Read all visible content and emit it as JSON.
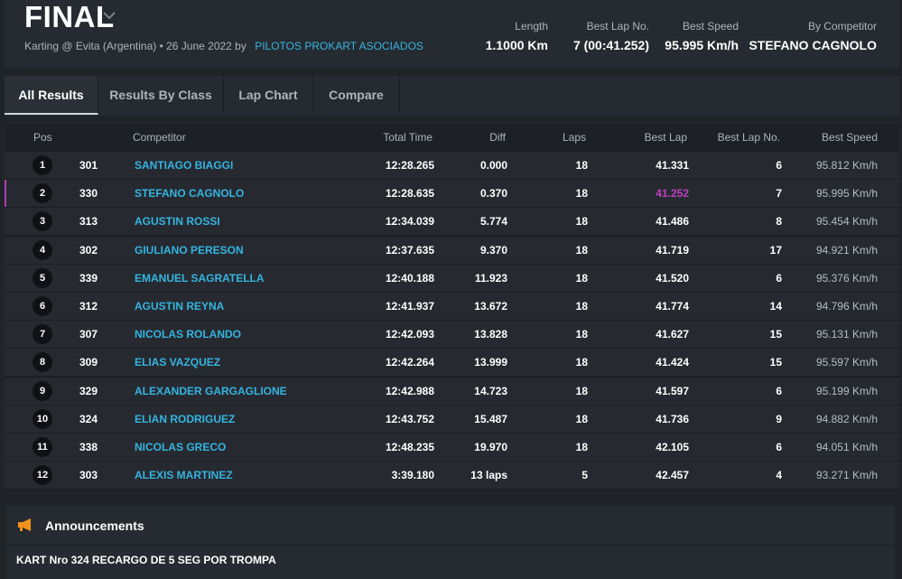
{
  "header": {
    "title": "FINAL",
    "subtitle": "Karting @ Evita (Argentina) • 26 June 2022 by",
    "organizer": "PILOTOS PROKART ASOCIADOS",
    "stats": [
      {
        "label": "Length",
        "value": "1.1000 Km"
      },
      {
        "label": "Best Lap No.",
        "value": "7 (00:41.252)"
      },
      {
        "label": "Best Speed",
        "value": "95.995 Km/h"
      },
      {
        "label": "By Competitor",
        "value": "STEFANO CAGNOLO"
      }
    ]
  },
  "tabs": [
    "All Results",
    "Results By Class",
    "Lap Chart",
    "Compare"
  ],
  "active_tab": "All Results",
  "table": {
    "columns": [
      "Pos",
      "Competitor",
      "Total Time",
      "Diff",
      "Laps",
      "Best Lap",
      "Best Lap No.",
      "Best Speed"
    ],
    "rows": [
      {
        "pos": "1",
        "num": "301",
        "name": "SANTIAGO BIAGGI",
        "total": "12:28.265",
        "diff": "0.000",
        "laps": "18",
        "best": "41.331",
        "bestno": "6",
        "speed": "95.812 Km/h"
      },
      {
        "pos": "2",
        "num": "330",
        "name": "STEFANO CAGNOLO",
        "total": "12:28.635",
        "diff": "0.370",
        "laps": "18",
        "best": "41.252",
        "bestno": "7",
        "speed": "95.995 Km/h"
      },
      {
        "pos": "3",
        "num": "313",
        "name": "AGUSTIN ROSSI",
        "total": "12:34.039",
        "diff": "5.774",
        "laps": "18",
        "best": "41.486",
        "bestno": "8",
        "speed": "95.454 Km/h"
      },
      {
        "pos": "4",
        "num": "302",
        "name": "GIULIANO PERESON",
        "total": "12:37.635",
        "diff": "9.370",
        "laps": "18",
        "best": "41.719",
        "bestno": "17",
        "speed": "94.921 Km/h"
      },
      {
        "pos": "5",
        "num": "339",
        "name": "EMANUEL SAGRATELLA",
        "total": "12:40.188",
        "diff": "11.923",
        "laps": "18",
        "best": "41.520",
        "bestno": "6",
        "speed": "95.376 Km/h"
      },
      {
        "pos": "6",
        "num": "312",
        "name": "AGUSTIN REYNA",
        "total": "12:41.937",
        "diff": "13.672",
        "laps": "18",
        "best": "41.774",
        "bestno": "14",
        "speed": "94.796 Km/h"
      },
      {
        "pos": "7",
        "num": "307",
        "name": "NICOLAS ROLANDO",
        "total": "12:42.093",
        "diff": "13.828",
        "laps": "18",
        "best": "41.627",
        "bestno": "15",
        "speed": "95.131 Km/h"
      },
      {
        "pos": "8",
        "num": "309",
        "name": "ELIAS VAZQUEZ",
        "total": "12:42.264",
        "diff": "13.999",
        "laps": "18",
        "best": "41.424",
        "bestno": "15",
        "speed": "95.597 Km/h"
      },
      {
        "pos": "9",
        "num": "329",
        "name": "ALEXANDER GARGAGLIONE",
        "total": "12:42.988",
        "diff": "14.723",
        "laps": "18",
        "best": "41.597",
        "bestno": "6",
        "speed": "95.199 Km/h"
      },
      {
        "pos": "10",
        "num": "324",
        "name": "ELIAN RODRIGUEZ",
        "total": "12:43.752",
        "diff": "15.487",
        "laps": "18",
        "best": "41.736",
        "bestno": "9",
        "speed": "94.882 Km/h"
      },
      {
        "pos": "11",
        "num": "338",
        "name": "NICOLAS GRECO",
        "total": "12:48.235",
        "diff": "19.970",
        "laps": "18",
        "best": "42.105",
        "bestno": "6",
        "speed": "94.051 Km/h"
      },
      {
        "pos": "12",
        "num": "303",
        "name": "ALEXIS MARTINEZ",
        "total": "3:39.180",
        "diff": "13 laps",
        "laps": "5",
        "best": "42.457",
        "bestno": "4",
        "speed": "93.271 Km/h"
      }
    ]
  },
  "colors": {
    "best_lap_highlight": "#c13fc1",
    "competitor_link": "#35b4e0",
    "announcement_icon": "#f0901e"
  },
  "announcements": {
    "title": "Announcements",
    "icon": "megaphone-icon",
    "text": "KART Nro 324 RECARGO DE 5 SEG POR TROMPA"
  }
}
